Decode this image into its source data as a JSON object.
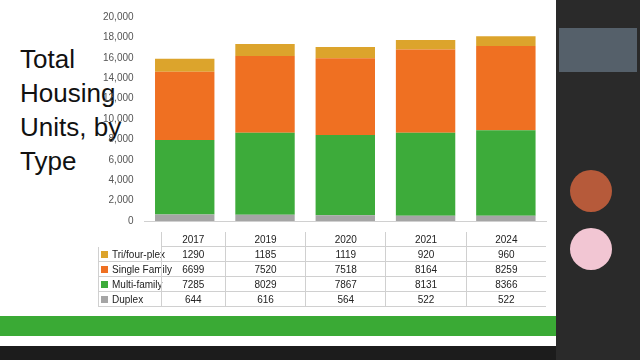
{
  "chart_data": {
    "type": "bar",
    "title": "Total Housing Units, by Type",
    "stacked": true,
    "grid": false,
    "tick_labels": "y",
    "categories": [
      "2017",
      "2019",
      "2020",
      "2021",
      "2024"
    ],
    "series": [
      {
        "name": "Duplex",
        "color": "#a5a5a5",
        "values": [
          644,
          616,
          564,
          522,
          522
        ]
      },
      {
        "name": "Multi-family",
        "color": "#3dab3a",
        "values": [
          7285,
          8029,
          7867,
          8131,
          8366
        ]
      },
      {
        "name": "Single Family",
        "color": "#ef7022",
        "values": [
          6699,
          7520,
          7518,
          8164,
          8259
        ]
      },
      {
        "name": "Tri/four-plex",
        "color": "#dca42c",
        "values": [
          1290,
          1185,
          1119,
          920,
          960
        ]
      }
    ],
    "ylim": [
      0,
      20000
    ],
    "yticks": [
      0,
      {
        "value": 2000,
        "label": "2,000"
      },
      {
        "value": 4000,
        "label": "4,000"
      },
      {
        "value": 6000,
        "label": "6,000"
      },
      {
        "value": 8000,
        "label": "8,000"
      },
      {
        "value": 10000,
        "label": "10,000"
      },
      {
        "value": 12000,
        "label": "12,000"
      },
      {
        "value": 14000,
        "label": "14,000"
      },
      {
        "value": 16000,
        "label": "16,000"
      },
      {
        "value": 18000,
        "label": "18,000"
      },
      {
        "value": 20000,
        "label": "20,000"
      }
    ]
  }
}
